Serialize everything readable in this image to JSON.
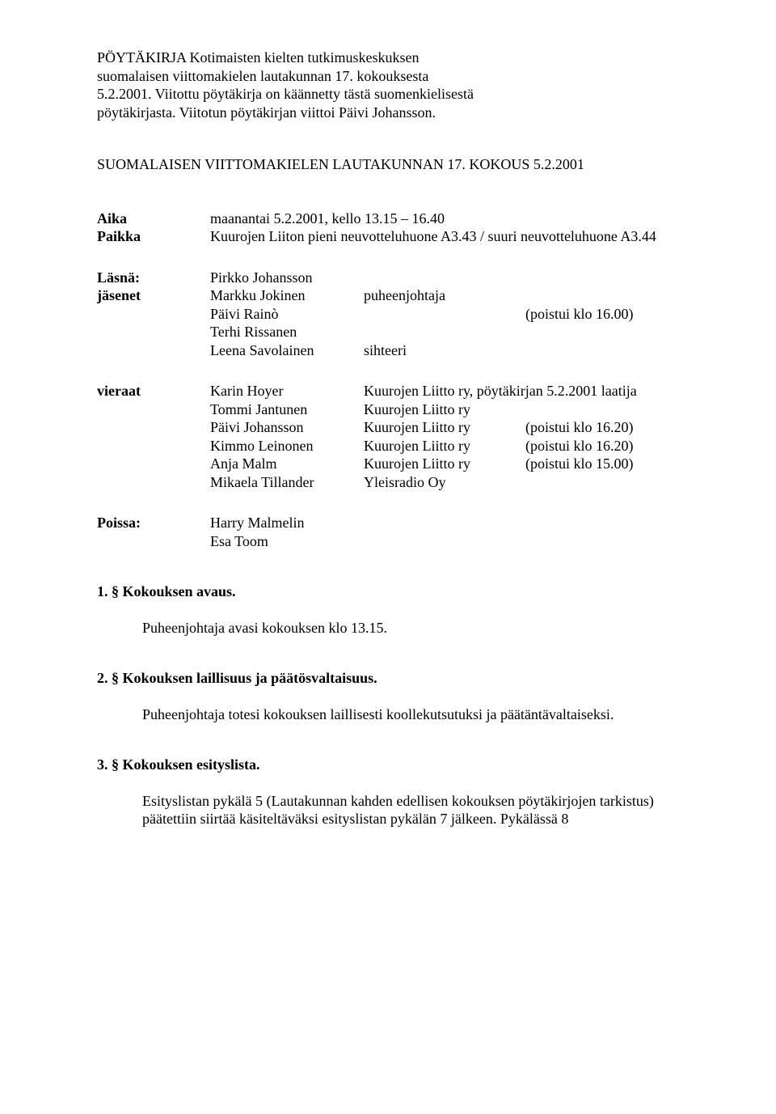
{
  "intro": {
    "line1": "PÖYTÄKIRJA Kotimaisten kielten tutkimuskeskuksen",
    "line2": "suomalaisen viittomakielen lautakunnan 17. kokouksesta",
    "line3": "5.2.2001. Viitottu pöytäkirja on käännetty tästä suomenkielisestä",
    "line4": "pöytäkirjasta. Viitotun pöytäkirjan viittoi Päivi Johansson."
  },
  "mainTitle": "SUOMALAISEN VIITTOMAKIELEN LAUTAKUNNAN 17. KOKOUS 5.2.2001",
  "meta": {
    "aikaKey": "Aika",
    "aikaVal": "maanantai 5.2.2001, kello 13.15 – 16.40",
    "paikkaKey": "Paikka",
    "paikkaVal": "Kuurojen Liiton pieni neuvotteluhuone A3.43 / suuri neuvotteluhuone A3.44"
  },
  "attendance": {
    "lasnaKey": "Läsnä:",
    "jasenetKey": "jäsenet",
    "jasenet": [
      {
        "name": "Pirkko Johansson",
        "role": "",
        "note": ""
      },
      {
        "name": "Markku Jokinen",
        "role": "puheenjohtaja",
        "note": ""
      },
      {
        "name": "Päivi Rainò",
        "role": "",
        "note": "(poistui klo 16.00)"
      },
      {
        "name": "Terhi Rissanen",
        "role": "",
        "note": ""
      },
      {
        "name": "Leena Savolainen",
        "role": "sihteeri",
        "note": ""
      }
    ],
    "vieraatKey": "vieraat",
    "vieraat": [
      {
        "name": "Karin Hoyer",
        "role": "Kuurojen Liitto ry, pöytäkirjan 5.2.2001 laatija",
        "note": "",
        "wide": true
      },
      {
        "name": "Tommi Jantunen",
        "role": "Kuurojen Liitto ry",
        "note": ""
      },
      {
        "name": "Päivi Johansson",
        "role": "Kuurojen Liitto ry",
        "note": "(poistui klo 16.20)"
      },
      {
        "name": "Kimmo Leinonen",
        "role": "Kuurojen Liitto ry",
        "note": "(poistui klo 16.20)"
      },
      {
        "name": "Anja Malm",
        "role": "Kuurojen Liitto ry",
        "note": "(poistui klo 15.00)"
      },
      {
        "name": "Mikaela Tillander",
        "role": "Yleisradio Oy",
        "note": ""
      }
    ],
    "poissaKey": "Poissa:",
    "poissa": [
      {
        "name": "Harry Malmelin"
      },
      {
        "name": "Esa Toom"
      }
    ]
  },
  "sections": [
    {
      "title": "1. § Kokouksen avaus.",
      "body": "Puheenjohtaja avasi kokouksen klo 13.15."
    },
    {
      "title": "2. § Kokouksen laillisuus ja päätösvaltaisuus.",
      "body": "Puheenjohtaja totesi kokouksen laillisesti koollekutsutuksi ja päätäntävaltaiseksi."
    },
    {
      "title": "3. § Kokouksen esityslista.",
      "body": "Esityslistan pykälä 5 (Lautakunnan kahden edellisen kokouksen pöytäkirjojen tarkistus) päätettiin siirtää käsiteltäväksi esityslistan pykälän 7 jälkeen. Pykälässä 8"
    }
  ]
}
